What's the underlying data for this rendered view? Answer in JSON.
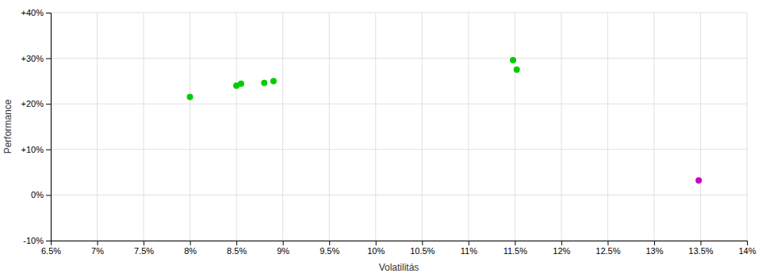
{
  "chart_data": {
    "type": "scatter",
    "x_label": "Volatilitás",
    "y_label": "Performance",
    "series": [
      {
        "color": "#00cc00",
        "x": [
          0.08,
          0.085,
          0.0855,
          0.088,
          0.089,
          0.1148,
          0.1152
        ],
        "values": [
          0.215,
          0.24,
          0.244,
          0.246,
          0.25,
          0.296,
          0.275
        ]
      },
      {
        "color": "#cc00cc",
        "x": [
          0.1348
        ],
        "values": [
          0.032
        ]
      }
    ],
    "xlim": [
      0.065,
      0.14
    ],
    "ylim": [
      -0.1,
      0.4
    ],
    "xticks": [
      {
        "value": 0.065,
        "label": "6.5%"
      },
      {
        "value": 0.07,
        "label": "7%"
      },
      {
        "value": 0.075,
        "label": "7.5%"
      },
      {
        "value": 0.08,
        "label": "8%"
      },
      {
        "value": 0.085,
        "label": "8.5%"
      },
      {
        "value": 0.09,
        "label": "9%"
      },
      {
        "value": 0.095,
        "label": "9.5%"
      },
      {
        "value": 0.1,
        "label": "10%"
      },
      {
        "value": 0.105,
        "label": "10.5%"
      },
      {
        "value": 0.11,
        "label": "11%"
      },
      {
        "value": 0.115,
        "label": "11.5%"
      },
      {
        "value": 0.12,
        "label": "12%"
      },
      {
        "value": 0.125,
        "label": "12.5%"
      },
      {
        "value": 0.13,
        "label": "13%"
      },
      {
        "value": 0.135,
        "label": "13.5%"
      },
      {
        "value": 0.14,
        "label": "14%"
      }
    ],
    "yticks": [
      {
        "value": -0.1,
        "label": "-10%"
      },
      {
        "value": 0.0,
        "label": "0%"
      },
      {
        "value": 0.1,
        "label": "+10%"
      },
      {
        "value": 0.2,
        "label": "+20%"
      },
      {
        "value": 0.3,
        "label": "+30%"
      },
      {
        "value": 0.4,
        "label": "+40%"
      }
    ],
    "grid": true
  }
}
